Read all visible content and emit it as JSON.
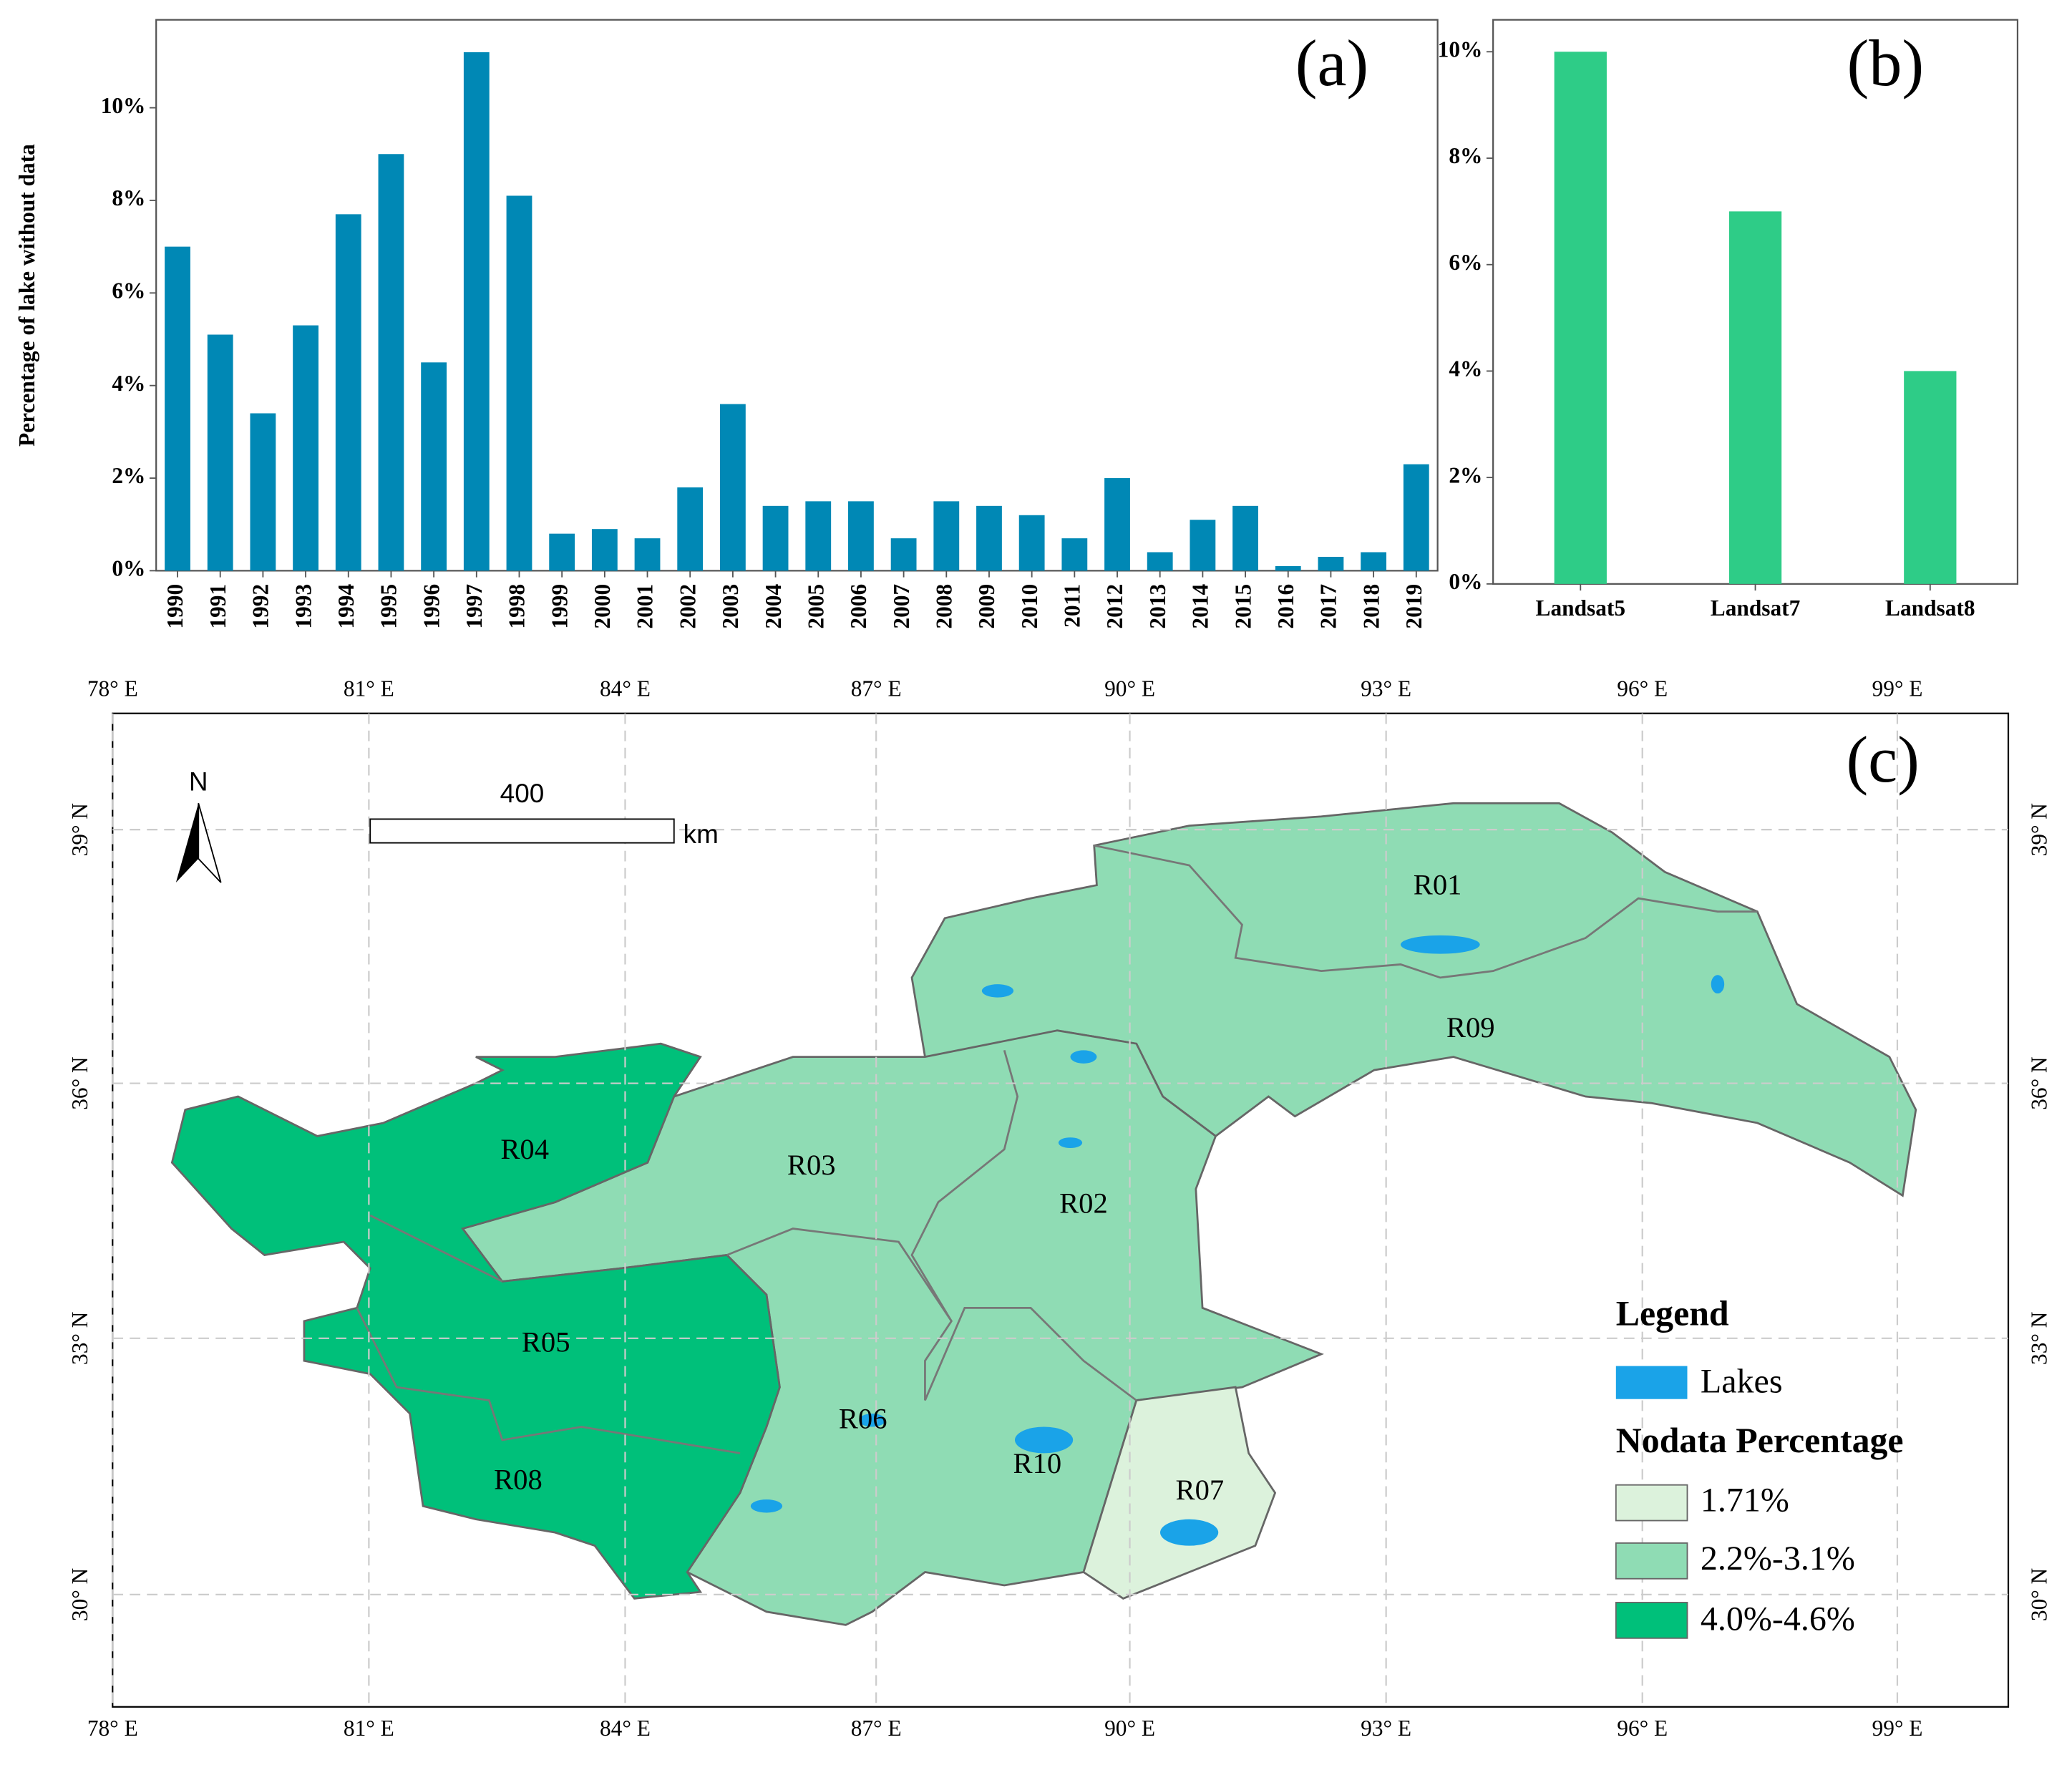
{
  "chart_data": [
    {
      "type": "bar",
      "annotation": "(a)",
      "y_label": "Percentage of lake without data",
      "categories": [
        "1990",
        "1991",
        "1992",
        "1993",
        "1994",
        "1995",
        "1996",
        "1997",
        "1998",
        "1999",
        "2000",
        "2001",
        "2002",
        "2003",
        "2004",
        "2005",
        "2006",
        "2007",
        "2008",
        "2009",
        "2010",
        "2011",
        "2012",
        "2013",
        "2014",
        "2015",
        "2016",
        "2017",
        "2018",
        "2019"
      ],
      "values": [
        7.0,
        5.1,
        3.4,
        5.3,
        7.7,
        9.0,
        4.5,
        11.2,
        8.1,
        0.8,
        0.9,
        0.7,
        1.8,
        3.6,
        1.4,
        1.5,
        1.5,
        0.7,
        1.5,
        1.4,
        1.2,
        0.7,
        2.0,
        0.4,
        1.1,
        1.4,
        0.1,
        0.3,
        0.4,
        2.3
      ],
      "color": "#0088b5",
      "ylim": [
        0,
        11.9
      ],
      "yticks": [
        {
          "value": 0,
          "label": "0%"
        },
        {
          "value": 2,
          "label": "2%"
        },
        {
          "value": 4,
          "label": "4%"
        },
        {
          "value": 6,
          "label": "6%"
        },
        {
          "value": 8,
          "label": "8%"
        },
        {
          "value": 10,
          "label": "10%"
        }
      ]
    },
    {
      "type": "bar",
      "annotation": "(b)",
      "categories": [
        "Landsat5",
        "Landsat7",
        "Landsat8"
      ],
      "values": [
        10,
        7,
        4
      ],
      "color": "#2ecc87",
      "ylim": [
        0,
        10.6
      ],
      "yticks": [
        {
          "value": 0,
          "label": "0%"
        },
        {
          "value": 2,
          "label": "2%"
        },
        {
          "value": 4,
          "label": "4%"
        },
        {
          "value": 6,
          "label": "6%"
        },
        {
          "value": 8,
          "label": "8%"
        },
        {
          "value": 10,
          "label": "10%"
        }
      ]
    }
  ],
  "map": {
    "annotation": "(c)",
    "lon_labels": [
      "78° E",
      "81° E",
      "84° E",
      "87° E",
      "90° E",
      "93° E",
      "96° E",
      "99° E"
    ],
    "lat_labels": [
      "39° N",
      "36° N",
      "33° N",
      "30° N"
    ],
    "regions": [
      "R01",
      "R09",
      "R04",
      "R03",
      "R02",
      "R05",
      "R06",
      "R10",
      "R07",
      "R08"
    ],
    "north": "N",
    "scale": "400",
    "scale_unit": "km",
    "legend": {
      "title": "Legend",
      "lakes": "Lakes",
      "subtitle": "Nodata Percentage",
      "classes": [
        "1.71%",
        "2.2%-3.1%",
        "4.0%-4.6%"
      ]
    }
  }
}
